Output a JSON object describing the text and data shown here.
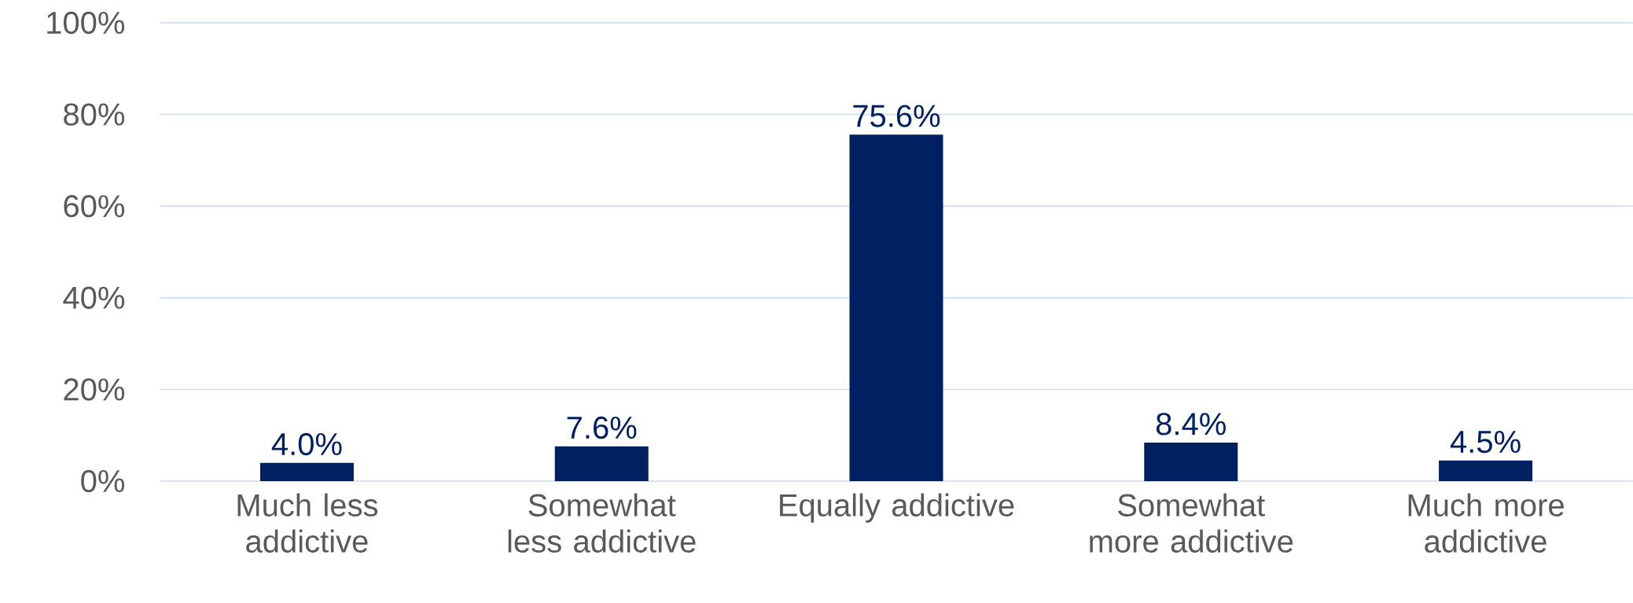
{
  "chart_data": {
    "type": "bar",
    "categories": [
      "Much less addictive",
      "Somewhat less addictive",
      "Equally addictive",
      "Somewhat more addictive",
      "Much more addictive"
    ],
    "values": [
      4.0,
      7.6,
      75.6,
      8.4,
      4.5
    ],
    "value_labels": [
      "4.0%",
      "7.6%",
      "75.6%",
      "8.4%",
      "4.5%"
    ],
    "color": "#002060",
    "ylim": [
      0,
      100
    ],
    "yticks": [
      {
        "value": 0,
        "label": "0%"
      },
      {
        "value": 20,
        "label": "20%"
      },
      {
        "value": 40,
        "label": "40%"
      },
      {
        "value": 60,
        "label": "60%"
      },
      {
        "value": 80,
        "label": "80%"
      },
      {
        "value": 100,
        "label": "100%"
      }
    ],
    "grid": "y"
  }
}
